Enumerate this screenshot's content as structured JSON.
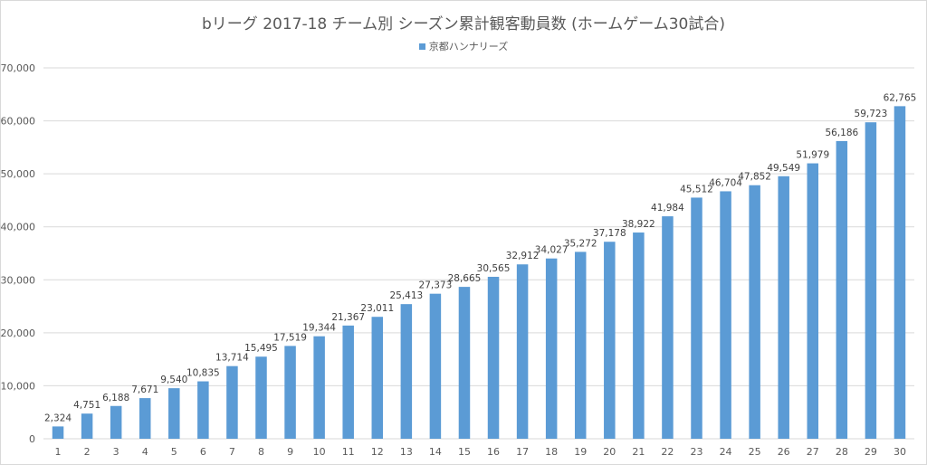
{
  "chart_data": {
    "type": "bar",
    "title": "bリーグ 2017-18 チーム別 シーズン累計観客動員数 (ホームゲーム30試合)",
    "xlabel": "",
    "ylabel": "",
    "categories": [
      "1",
      "2",
      "3",
      "4",
      "5",
      "6",
      "7",
      "8",
      "9",
      "10",
      "11",
      "12",
      "13",
      "14",
      "15",
      "16",
      "17",
      "18",
      "19",
      "20",
      "21",
      "22",
      "23",
      "24",
      "25",
      "26",
      "27",
      "28",
      "29",
      "30"
    ],
    "series": [
      {
        "name": "京都ハンナリーズ",
        "values": [
          2324,
          4751,
          6188,
          7671,
          9540,
          10835,
          13714,
          15495,
          17519,
          19344,
          21367,
          23011,
          25413,
          27373,
          28665,
          30565,
          32912,
          34027,
          35272,
          37178,
          38922,
          41984,
          45512,
          46704,
          47852,
          49549,
          51979,
          56186,
          59723,
          62765
        ],
        "labels": [
          "2,324",
          "4,751",
          "6,188",
          "7,671",
          "9,540",
          "10,835",
          "13,714",
          "15,495",
          "17,519",
          "19,344",
          "21,367",
          "23,011",
          "25,413",
          "27,373",
          "28,665",
          "30,565",
          "32,912",
          "34,027",
          "35,272",
          "37,178",
          "38,922",
          "41,984",
          "45,512",
          "46,704",
          "47,852",
          "49,549",
          "51,979",
          "56,186",
          "59,723",
          "62,765"
        ],
        "color": "#5b9bd5"
      }
    ],
    "ylim": [
      0,
      70000
    ],
    "yticks": [
      0,
      10000,
      20000,
      30000,
      40000,
      50000,
      60000,
      70000
    ],
    "ytick_labels": [
      "0",
      "10,000",
      "20,000",
      "30,000",
      "40,000",
      "50,000",
      "60,000",
      "70,000"
    ],
    "grid": true,
    "legend_position": "top",
    "gridline_color": "#d9d9d9"
  }
}
